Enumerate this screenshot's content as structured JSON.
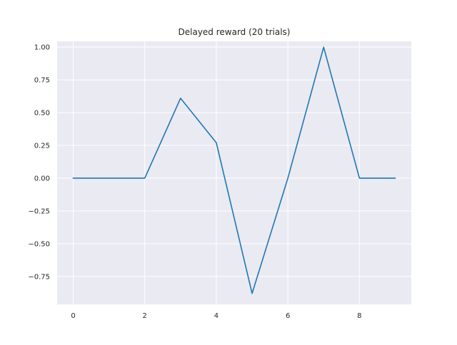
{
  "chart_data": {
    "type": "line",
    "title": "Delayed reward (20 trials)",
    "xlabel": "",
    "ylabel": "",
    "xlim": [
      -0.45,
      9.45
    ],
    "ylim": [
      -0.9635,
      1.0444
    ],
    "xticks": [
      0,
      2,
      4,
      6,
      8
    ],
    "xtick_labels": [
      "0",
      "2",
      "4",
      "6",
      "8"
    ],
    "yticks": [
      -0.75,
      -0.5,
      -0.25,
      0.0,
      0.25,
      0.5,
      0.75,
      1.0
    ],
    "ytick_labels": [
      "−0.75",
      "−0.50",
      "−0.25",
      "0.00",
      "0.25",
      "0.50",
      "0.75",
      "1.00"
    ],
    "grid": true,
    "series": [
      {
        "color": "#1f77b4",
        "x": [
          0,
          1,
          2,
          3,
          4,
          5,
          6,
          7,
          8,
          9
        ],
        "y": [
          0.0,
          0.0,
          0.0,
          0.61,
          0.27,
          -0.88,
          0.0,
          1.0,
          0.0,
          0.0
        ]
      }
    ]
  },
  "style": {
    "plot_background": "#eaeaf2",
    "grid_color": "#ffffff",
    "text_color": "#262626"
  }
}
